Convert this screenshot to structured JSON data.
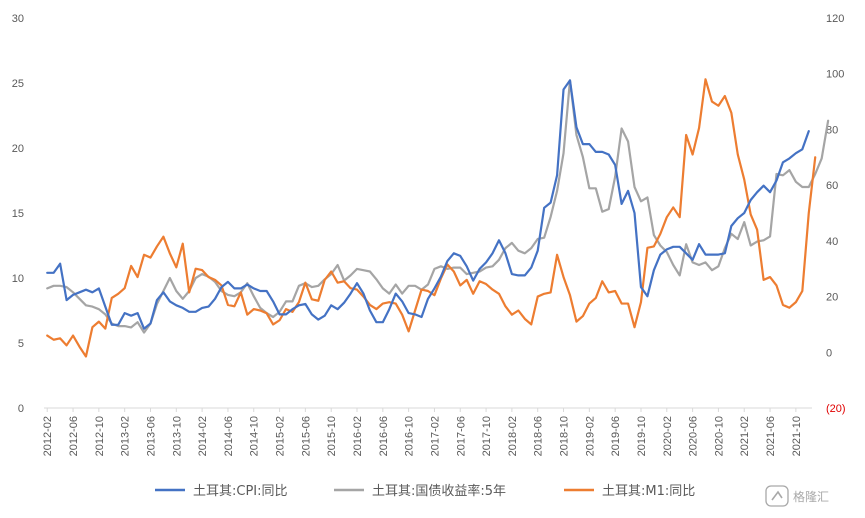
{
  "chart_data": {
    "type": "line",
    "title": "",
    "x_labels": [
      "2012-02",
      "2012-06",
      "2012-10",
      "2013-02",
      "2013-06",
      "2013-10",
      "2014-02",
      "2014-06",
      "2014-10",
      "2015-02",
      "2015-06",
      "2015-10",
      "2016-02",
      "2016-06",
      "2016-10",
      "2017-02",
      "2017-06",
      "2017-10",
      "2018-02",
      "2018-06",
      "2018-10",
      "2019-02",
      "2019-06",
      "2019-10",
      "2020-02",
      "2020-06",
      "2020-10",
      "2021-02",
      "2021-06",
      "2021-10"
    ],
    "x_start": "2012-02",
    "left_axis": {
      "min": 0,
      "max": 30,
      "ticks": [
        "0",
        "5",
        "10",
        "15",
        "20",
        "25",
        "30"
      ]
    },
    "right_axis": {
      "min": -20,
      "max": 120,
      "ticks": [
        "(20)",
        "0",
        "20",
        "40",
        "60",
        "80",
        "100",
        "120"
      ],
      "negative_color": "#e00000"
    },
    "grid": false,
    "legend_position": "bottom",
    "series": [
      {
        "name": "土耳其:CPI:同比",
        "axis": "left",
        "color": "#4472c4",
        "values": [
          10.4,
          10.4,
          11.1,
          8.3,
          8.7,
          8.9,
          9.1,
          8.9,
          9.2,
          7.8,
          6.4,
          6.4,
          7.3,
          7.1,
          7.3,
          6.1,
          6.5,
          8.3,
          8.9,
          8.2,
          7.9,
          7.7,
          7.4,
          7.4,
          7.7,
          7.8,
          8.4,
          9.3,
          9.7,
          9.2,
          9.2,
          9.5,
          9.2,
          9.0,
          9.0,
          8.2,
          7.2,
          7.2,
          7.6,
          7.9,
          8.0,
          7.2,
          6.8,
          7.1,
          7.9,
          7.6,
          8.1,
          8.8,
          9.6,
          8.8,
          7.5,
          6.6,
          6.6,
          7.6,
          8.8,
          8.2,
          7.3,
          7.2,
          7.0,
          8.4,
          9.2,
          10.1,
          11.3,
          11.9,
          11.7,
          10.9,
          9.8,
          10.7,
          11.2,
          11.9,
          12.9,
          11.9,
          10.3,
          10.2,
          10.2,
          10.8,
          12.1,
          15.4,
          15.8,
          17.9,
          24.5,
          25.2,
          21.6,
          20.3,
          20.3,
          19.7,
          19.7,
          19.5,
          18.7,
          15.7,
          16.7,
          15.0,
          9.3,
          8.6,
          10.6,
          11.8,
          12.2,
          12.4,
          12.4,
          11.9,
          11.4,
          12.6,
          11.8,
          11.8,
          11.8,
          11.9,
          14.0,
          14.6,
          15.0,
          16.0,
          16.6,
          17.1,
          16.6,
          17.5,
          18.9,
          19.2,
          19.6,
          19.9,
          21.3
        ]
      },
      {
        "name": "土耳其:国债收益率:5年",
        "axis": "left",
        "color": "#a5a5a5",
        "values": [
          9.2,
          9.4,
          9.4,
          9.3,
          8.9,
          8.4,
          7.9,
          7.8,
          7.6,
          7.2,
          6.5,
          6.3,
          6.3,
          6.2,
          6.6,
          5.8,
          6.5,
          8.0,
          9.0,
          10.0,
          9.0,
          8.4,
          9.0,
          10.0,
          10.3,
          10.1,
          9.7,
          9.0,
          8.7,
          8.6,
          8.9,
          9.6,
          8.6,
          7.7,
          7.3,
          7.0,
          7.4,
          8.2,
          8.2,
          9.4,
          9.6,
          9.3,
          9.4,
          9.9,
          10.3,
          11.0,
          9.8,
          10.2,
          10.7,
          10.6,
          10.5,
          9.9,
          9.2,
          8.8,
          9.5,
          8.8,
          9.4,
          9.4,
          9.1,
          9.5,
          10.7,
          10.9,
          10.7,
          10.8,
          10.8,
          10.3,
          10.4,
          10.5,
          10.8,
          10.9,
          11.4,
          12.3,
          12.7,
          12.1,
          11.9,
          12.3,
          13.0,
          13.1,
          14.7,
          16.7,
          19.6,
          25.2,
          21.0,
          19.3,
          16.9,
          16.9,
          15.1,
          15.3,
          17.8,
          21.5,
          20.5,
          17.0,
          15.9,
          16.2,
          13.3,
          12.5,
          12.0,
          11.0,
          10.2,
          12.6,
          11.2,
          11.0,
          11.2,
          10.6,
          10.9,
          12.3,
          13.4,
          13.0,
          14.3,
          12.5,
          12.8,
          12.9,
          13.2,
          18.0,
          17.9,
          18.3,
          17.4,
          17.0,
          17.0,
          18.0,
          19.2,
          22.1
        ]
      },
      {
        "name": "土耳其:M1:同比",
        "axis": "right",
        "color": "#ed7d31",
        "values": [
          6.0,
          4.5,
          5.0,
          2.5,
          6.0,
          2.0,
          -1.5,
          9.0,
          11.0,
          8.5,
          19.5,
          21.0,
          23.0,
          31.0,
          27.0,
          35.0,
          34.0,
          38.0,
          41.5,
          35.5,
          30.5,
          39.0,
          21.5,
          30.0,
          29.5,
          27.0,
          26.0,
          24.0,
          17.0,
          16.5,
          21.5,
          13.5,
          15.5,
          15.0,
          14.0,
          10.0,
          11.5,
          15.5,
          14.5,
          18.0,
          25.0,
          19.0,
          18.5,
          26.0,
          29.0,
          25.0,
          25.5,
          23.0,
          22.5,
          20.0,
          17.0,
          15.5,
          17.5,
          18.0,
          17.5,
          13.5,
          7.5,
          15.0,
          22.5,
          22.0,
          20.5,
          26.5,
          31.5,
          29.0,
          24.0,
          26.0,
          21.0,
          25.5,
          24.5,
          22.5,
          21.0,
          16.5,
          13.5,
          15.0,
          12.0,
          10.0,
          20.0,
          21.0,
          21.5,
          35.0,
          27.0,
          20.5,
          11.0,
          13.0,
          17.5,
          19.5,
          25.5,
          21.5,
          22.0,
          17.5,
          17.5,
          9.0,
          18.0,
          37.5,
          38.0,
          42.5,
          48.5,
          52.0,
          48.5,
          78.0,
          71.0,
          80.5,
          98.0,
          90.0,
          88.5,
          92.0,
          86.0,
          71.0,
          62.0,
          49.5,
          44.0,
          26.0,
          27.0,
          24.0,
          17.0,
          16.0,
          18.0,
          22.0,
          50.0,
          70.0
        ]
      }
    ]
  },
  "watermark": {
    "text": "格隆汇",
    "icon": "gelonghui-logo-icon"
  }
}
